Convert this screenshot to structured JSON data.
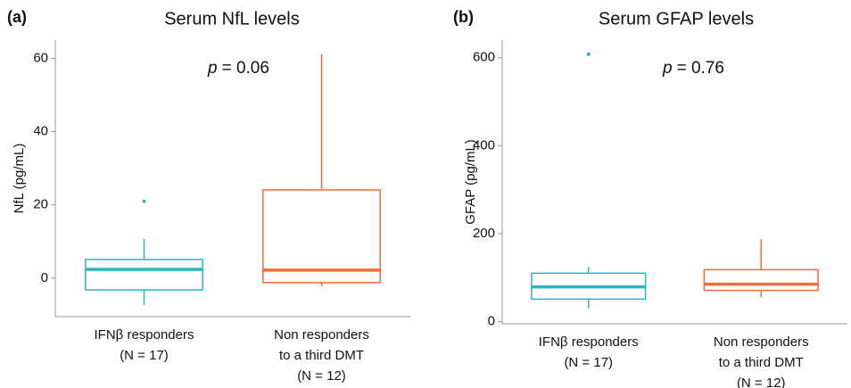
{
  "chart_data": [
    {
      "type": "box",
      "panel_label": "(a)",
      "title": "Serum NfL levels",
      "y_label": "NfL (pg/mL)",
      "annotation_var": "p",
      "annotation": "= 0.06",
      "categories": [
        [
          "IFNβ responders",
          "(N = 17)"
        ],
        [
          "Non responders",
          "to a third DMT",
          "(N = 12)"
        ]
      ],
      "colors": [
        "#2bb5c0",
        "#f26b3a"
      ],
      "boxes": [
        {
          "low": -7.3,
          "q1": -3.2,
          "median": 2.4,
          "q3": 5.1,
          "high": 10.7,
          "outliers": [
            21.0
          ]
        },
        {
          "low": -2.2,
          "q1": -1.2,
          "median": 2.2,
          "q3": 24.1,
          "high": 61.2,
          "outliers": []
        }
      ],
      "ylim": [
        -10.5,
        65
      ],
      "yticks": [
        0,
        20,
        40,
        60
      ]
    },
    {
      "type": "box",
      "panel_label": "(b)",
      "title": "Serum GFAP levels",
      "y_label": "GFAP (pg/mL)",
      "annotation_var": "p",
      "annotation": "= 0.76",
      "categories": [
        [
          "IFNβ responders",
          "(N = 17)"
        ],
        [
          "Non responders",
          "to a third DMT",
          "(N = 12)"
        ]
      ],
      "colors": [
        "#2bb5c0",
        "#f26b3a"
      ],
      "boxes": [
        {
          "low": 30,
          "q1": 51,
          "median": 79,
          "q3": 110,
          "high": 124,
          "outliers": [
            608
          ]
        },
        {
          "low": 55,
          "q1": 71,
          "median": 85,
          "q3": 118,
          "high": 187,
          "outliers": []
        }
      ],
      "ylim": [
        -5,
        640
      ],
      "yticks": [
        0,
        200,
        400,
        600
      ]
    }
  ]
}
